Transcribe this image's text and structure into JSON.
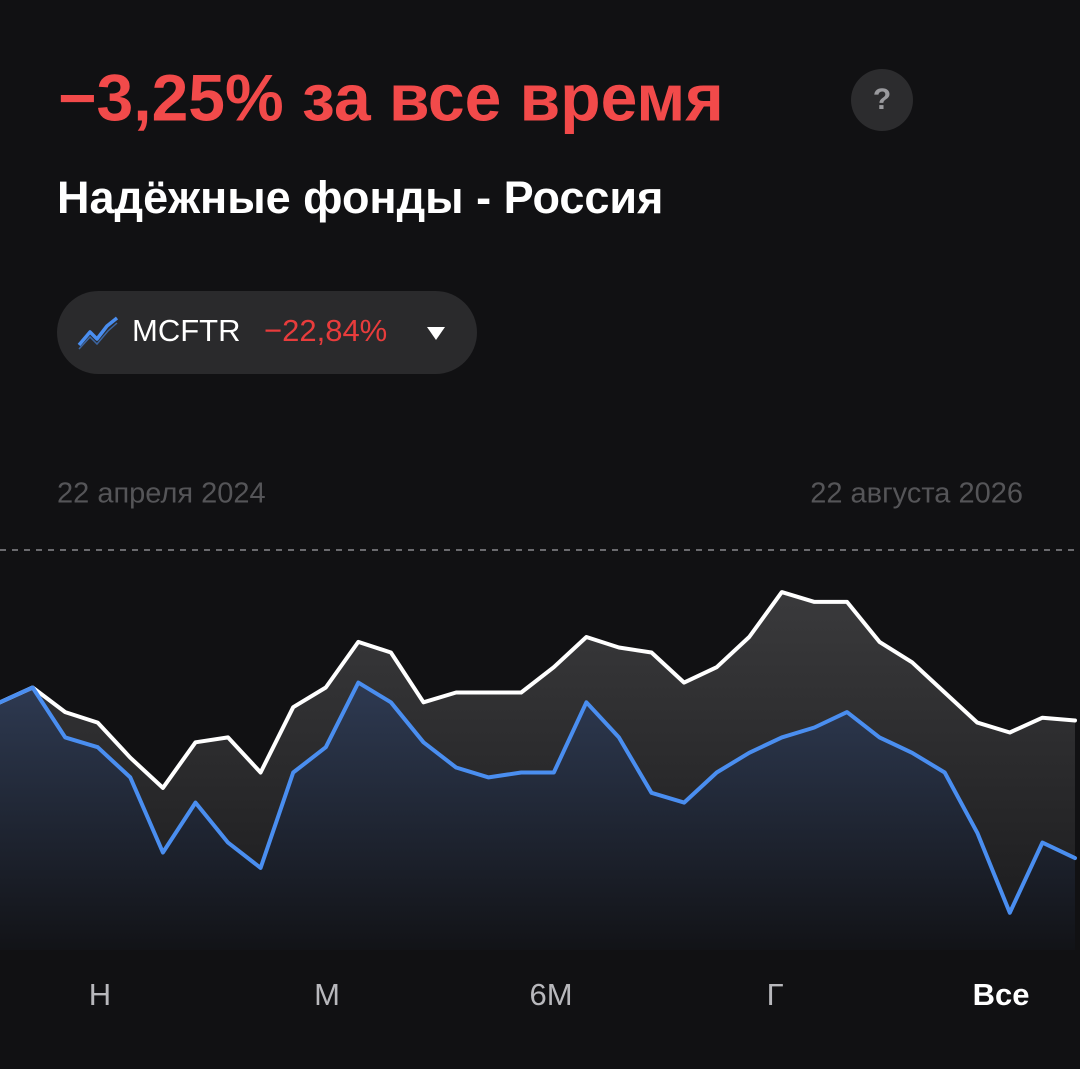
{
  "header": {
    "headline": "−3,25% за все время",
    "help_icon": "?",
    "subtitle": "Надёжные фонды - Россия"
  },
  "benchmark_chip": {
    "name": "MCFTR",
    "change": "−22,84%"
  },
  "period_buttons": [
    "Н",
    "М",
    "6М",
    "Г",
    "Все"
  ],
  "selected_period": "Все",
  "chart_data": {
    "type": "line",
    "start_date": "22 апреля 2024",
    "end_date": "22 августа 2026",
    "categories": [
      null,
      null,
      null,
      null,
      null,
      null,
      null,
      null,
      null,
      null,
      null,
      null,
      null,
      null,
      null,
      null,
      null,
      null,
      null,
      null,
      null,
      null,
      null,
      null,
      null,
      null,
      null,
      null,
      null,
      null,
      null,
      null,
      null,
      null
    ],
    "series": [
      {
        "name": "Надёжные фонды - Россия",
        "color": "#ffffff",
        "values": [
          -0.7,
          1.4,
          -2.1,
          -3.6,
          -8.6,
          -12.9,
          -6.4,
          -5.7,
          -10.7,
          -1.4,
          1.4,
          7.9,
          6.4,
          -0.7,
          0.7,
          0.7,
          0.7,
          4.3,
          8.6,
          7.1,
          6.4,
          2.1,
          4.3,
          8.6,
          15,
          13.6,
          13.6,
          7.9,
          5,
          0.7,
          -3.6,
          -5,
          -2.9,
          -3.3
        ]
      },
      {
        "name": "MCFTR",
        "color": "#4a8ef0",
        "values": [
          -0.7,
          1.4,
          -5.7,
          -7.1,
          -11.4,
          -22.1,
          -15,
          -20.7,
          -24.3,
          -10.7,
          -7.1,
          2.1,
          -0.7,
          -6.4,
          -10,
          -11.4,
          -10.7,
          -10.7,
          -0.7,
          -5.7,
          -13.6,
          -15,
          -10.7,
          -7.9,
          -5.7,
          -4.3,
          -2.1,
          -5.7,
          -7.9,
          -10.7,
          -19.3,
          -30.7,
          -20.7,
          -22.9
        ]
      }
    ],
    "ylim": [
      -36,
      21
    ]
  }
}
